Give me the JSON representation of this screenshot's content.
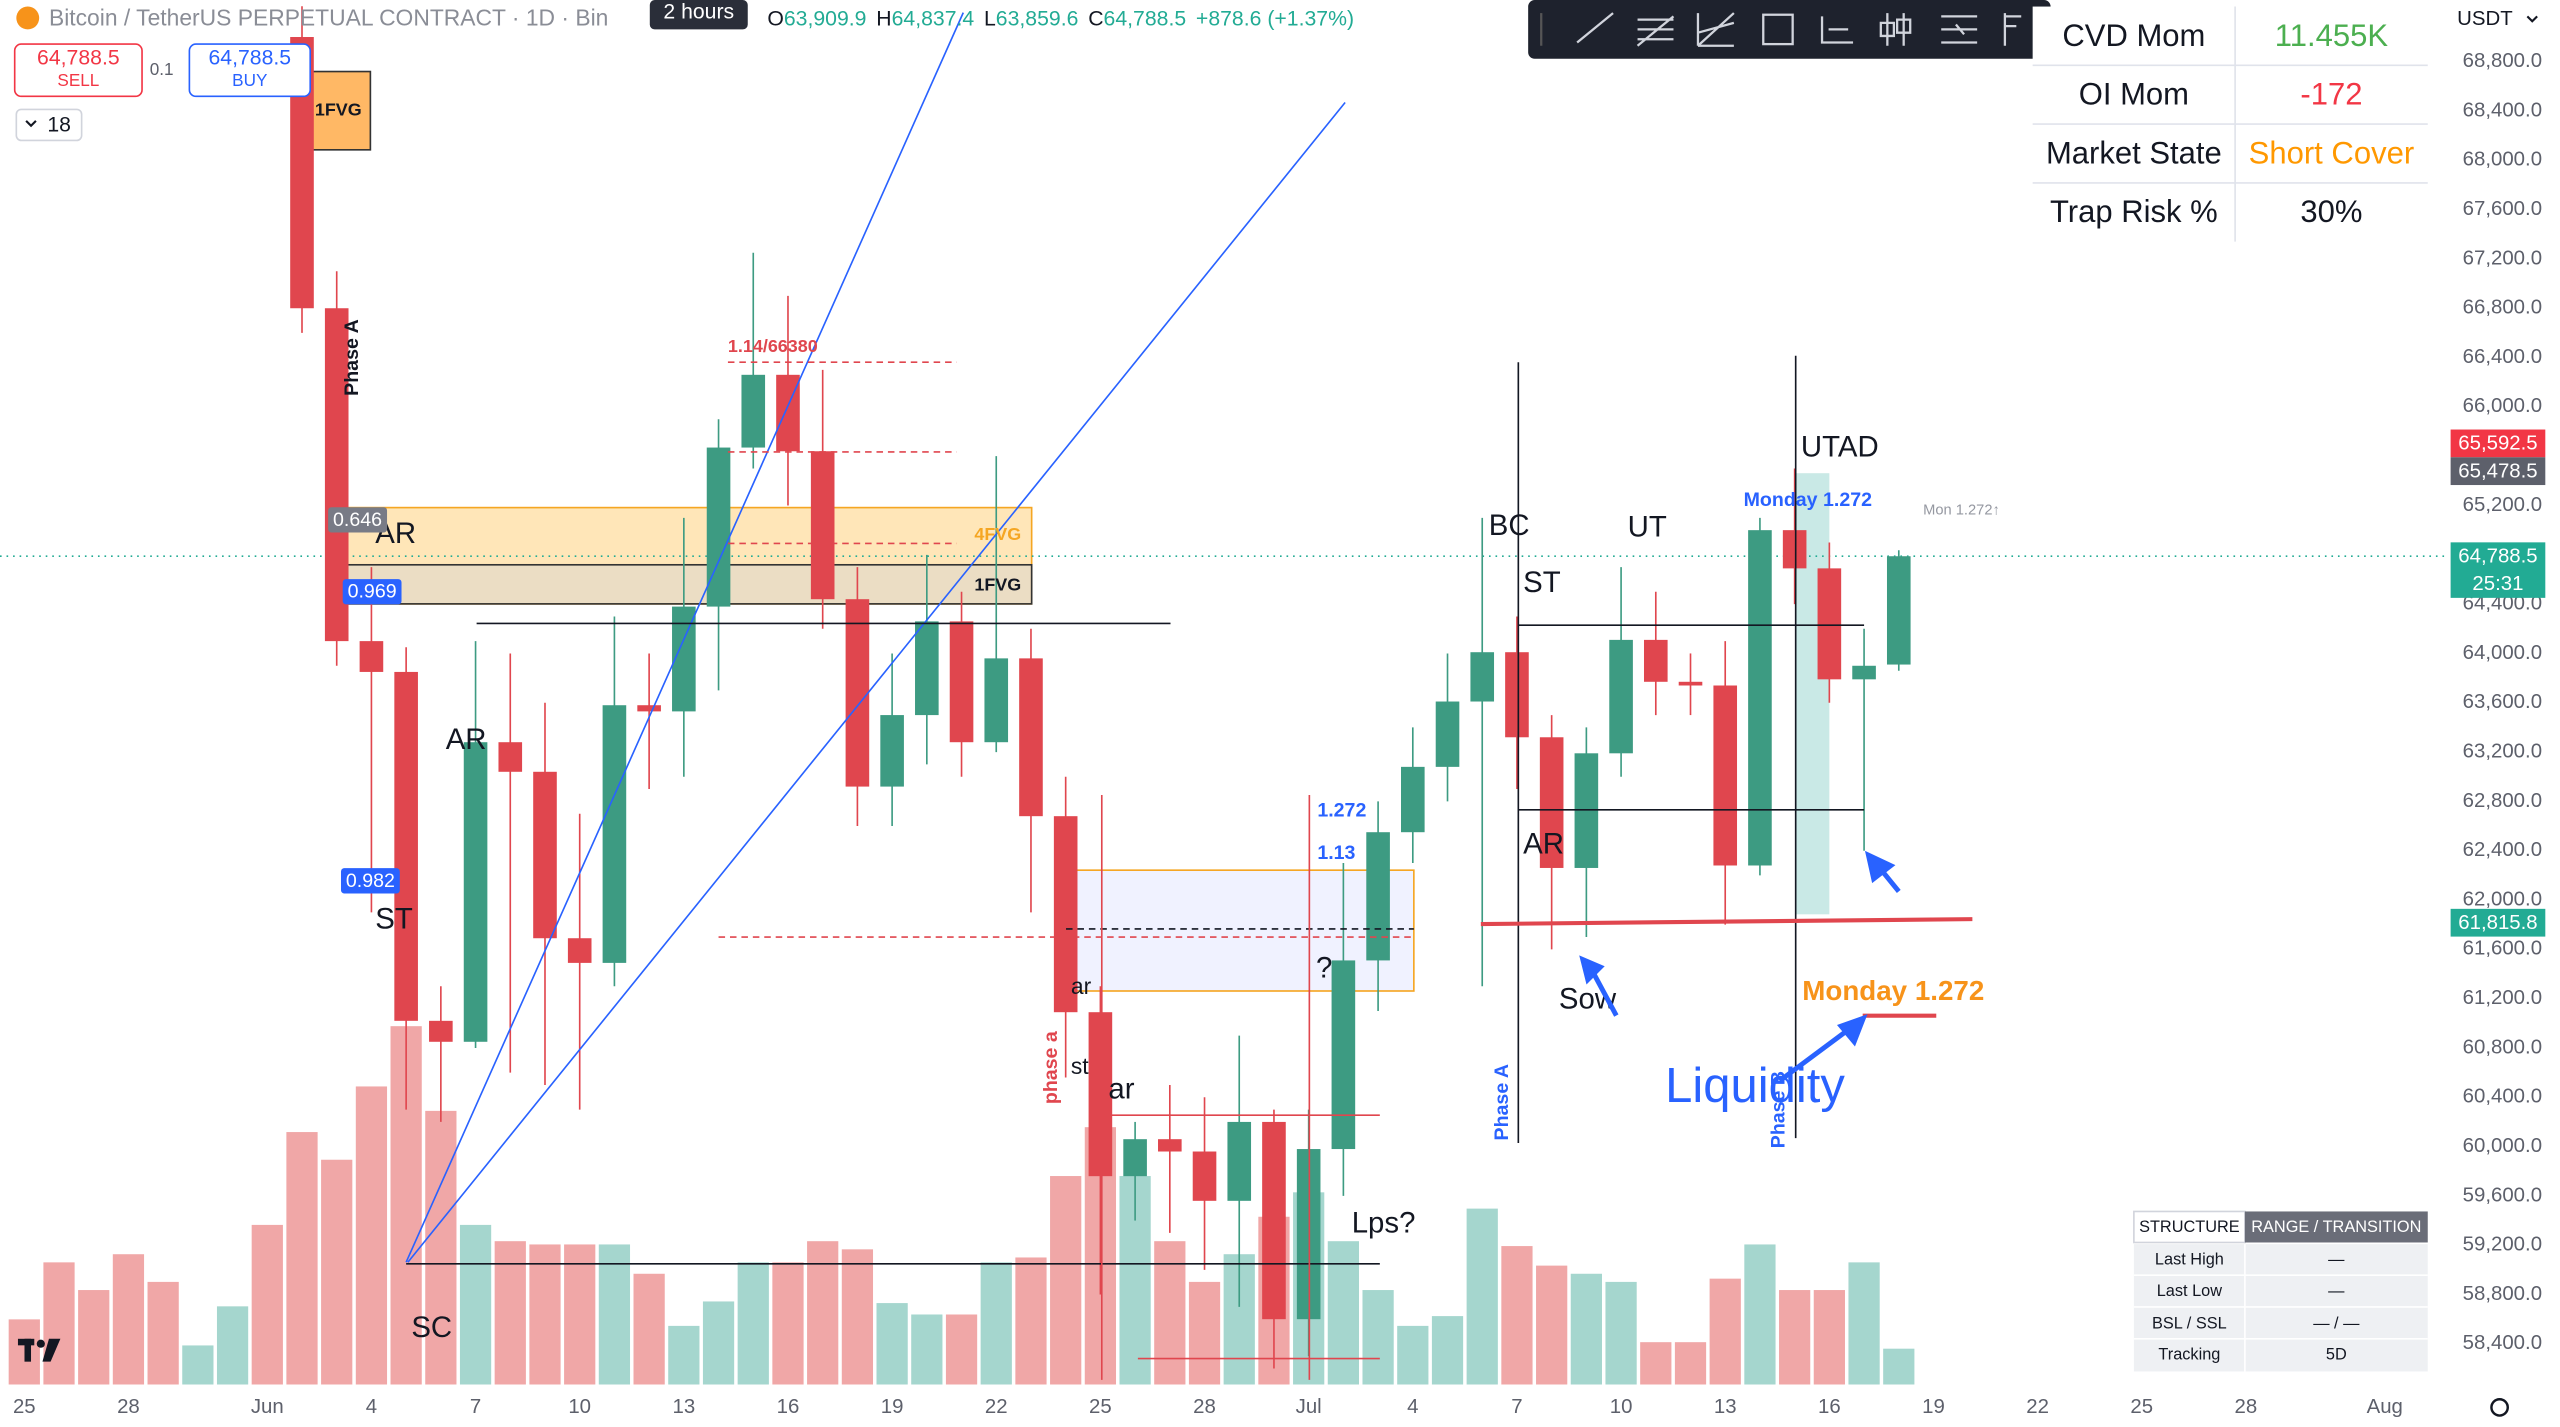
{
  "header": {
    "title": "Bitcoin / TetherUS PERPETUAL CONTRACT · 1D · Bin",
    "tooltip": "2 hours",
    "ohlc": [
      [
        "O",
        "63,909.9"
      ],
      [
        "H",
        "64,837.4"
      ],
      [
        "L",
        "63,859.6"
      ],
      [
        "C",
        "64,788.5"
      ]
    ],
    "change": "+878.6 (+1.37%)"
  },
  "trade": {
    "sell_price": "64,788.5",
    "sell": "SELL",
    "spread": "0.1",
    "buy_price": "64,788.5",
    "buy": "BUY",
    "interval": "18"
  },
  "currency": "USDT",
  "stats_table": {
    "rows": [
      [
        "CVD Mom",
        "11.455K"
      ],
      [
        "OI Mom",
        "-172"
      ],
      [
        "Market State",
        "Short Cover"
      ],
      [
        "Trap Risk %",
        "30%"
      ]
    ]
  },
  "structure_table": {
    "header": [
      "STRUCTURE",
      "RANGE / TRANSITION"
    ],
    "rows": [
      [
        "Last High",
        "—"
      ],
      [
        "Last Low",
        "—"
      ],
      [
        "BSL / SSL",
        "— / —"
      ],
      [
        "Tracking",
        "5D"
      ]
    ]
  },
  "chart_data": {
    "type": "candlestick",
    "grid": false,
    "up_color": "#3d9b82",
    "down_color": "#e0464e",
    "x": [
      8,
      9,
      10,
      11,
      12,
      13,
      14,
      15,
      16,
      17,
      18,
      19,
      20,
      21,
      22,
      23,
      24,
      25,
      26,
      27,
      28,
      29,
      30,
      31,
      32,
      33,
      34,
      35,
      36,
      37,
      38,
      39,
      40,
      41,
      42,
      43,
      44,
      45,
      46,
      47,
      48,
      49,
      50,
      51,
      52,
      53,
      54
    ],
    "open": [
      69000,
      66800,
      64100,
      63850,
      61020,
      60850,
      63280,
      63040,
      61690,
      61490,
      63580,
      63530,
      64380,
      65670,
      66260,
      65640,
      64440,
      62920,
      63500,
      64260,
      63280,
      63960,
      62680,
      61090,
      59760,
      60060,
      59960,
      59560,
      60200,
      58600,
      59980,
      61510,
      62550,
      63080,
      63610,
      64010,
      63320,
      62260,
      63190,
      64110,
      63770,
      63740,
      62280,
      65000,
      64690,
      63790,
      63909.9
    ],
    "high": [
      69250,
      67100,
      64700,
      64050,
      61300,
      64100,
      64000,
      63600,
      62700,
      64300,
      64000,
      65100,
      65900,
      67250,
      66900,
      66300,
      64700,
      64000,
      64800,
      64500,
      65600,
      64200,
      63000,
      61300,
      60200,
      60500,
      60400,
      60900,
      60300,
      60300,
      62300,
      62800,
      63400,
      64000,
      65100,
      64300,
      63500,
      63400,
      64700,
      64500,
      64000,
      64100,
      65100,
      65500,
      64900,
      64200,
      64837.4
    ],
    "low": [
      66600,
      63900,
      61900,
      60300,
      60200,
      60800,
      60600,
      60500,
      60300,
      61300,
      62900,
      63000,
      63700,
      65500,
      65200,
      64200,
      62600,
      62600,
      63100,
      63000,
      63200,
      61900,
      60560,
      58800,
      59400,
      59300,
      59000,
      58700,
      58200,
      58300,
      59600,
      61100,
      62300,
      62800,
      61300,
      62900,
      61600,
      61700,
      63000,
      63500,
      63500,
      61800,
      62200,
      64400,
      63600,
      62400,
      63859.6
    ],
    "close": [
      66800,
      64100,
      63850,
      61020,
      60850,
      63280,
      63040,
      61690,
      61490,
      63580,
      63530,
      64380,
      65670,
      66260,
      65640,
      64440,
      62920,
      63500,
      64260,
      63280,
      63960,
      62680,
      61090,
      59760,
      60060,
      59960,
      59560,
      60200,
      58600,
      59980,
      61510,
      62550,
      63080,
      63610,
      64010,
      63320,
      62260,
      63190,
      64110,
      63770,
      63740,
      62280,
      65000,
      64690,
      63790,
      63900,
      64788.5
    ],
    "xlim": [
      -0.7,
      69.85
    ],
    "xticks": [
      {
        "value": 0,
        "label": "25"
      },
      {
        "value": 3,
        "label": "28"
      },
      {
        "value": 7,
        "label": "Jun"
      },
      {
        "value": 10,
        "label": "4"
      },
      {
        "value": 13,
        "label": "7"
      },
      {
        "value": 16,
        "label": "10"
      },
      {
        "value": 19,
        "label": "13"
      },
      {
        "value": 22,
        "label": "16"
      },
      {
        "value": 25,
        "label": "19"
      },
      {
        "value": 28,
        "label": "22"
      },
      {
        "value": 31,
        "label": "25"
      },
      {
        "value": 34,
        "label": "28"
      },
      {
        "value": 37,
        "label": "Jul"
      },
      {
        "value": 40,
        "label": "4"
      },
      {
        "value": 43,
        "label": "7"
      },
      {
        "value": 46,
        "label": "10"
      },
      {
        "value": 49,
        "label": "13"
      },
      {
        "value": 52,
        "label": "16"
      },
      {
        "value": 55,
        "label": "19"
      },
      {
        "value": 58,
        "label": "22"
      },
      {
        "value": 61,
        "label": "25"
      },
      {
        "value": 64,
        "label": "28"
      },
      {
        "value": 68,
        "label": "Aug"
      }
    ],
    "ylim": [
      58070,
      69300
    ],
    "yticks": [
      {
        "value": 68800,
        "label": "68,800.0"
      },
      {
        "value": 68400,
        "label": "68,400.0"
      },
      {
        "value": 68000,
        "label": "68,000.0"
      },
      {
        "value": 67600,
        "label": "67,600.0"
      },
      {
        "value": 67200,
        "label": "67,200.0"
      },
      {
        "value": 66800,
        "label": "66,800.0"
      },
      {
        "value": 66400,
        "label": "66,400.0"
      },
      {
        "value": 66000,
        "label": "66,000.0"
      },
      {
        "value": 65200,
        "label": "65,200.0"
      },
      {
        "value": 64400,
        "label": "64,400.0"
      },
      {
        "value": 64000,
        "label": "64,000.0"
      },
      {
        "value": 63600,
        "label": "63,600.0"
      },
      {
        "value": 63200,
        "label": "63,200.0"
      },
      {
        "value": 62800,
        "label": "62,800.0"
      },
      {
        "value": 62400,
        "label": "62,400.0"
      },
      {
        "value": 62000,
        "label": "62,000.0"
      },
      {
        "value": 61600,
        "label": "61,600.0"
      },
      {
        "value": 61200,
        "label": "61,200.0"
      },
      {
        "value": 60800,
        "label": "60,800.0"
      },
      {
        "value": 60400,
        "label": "60,400.0"
      },
      {
        "value": 60000,
        "label": "60,000.0"
      },
      {
        "value": 59600,
        "label": "59,600.0"
      },
      {
        "value": 59200,
        "label": "59,200.0"
      },
      {
        "value": 58800,
        "label": "58,800.0"
      },
      {
        "value": 58400,
        "label": "58,400.0"
      }
    ],
    "price_tags": [
      {
        "value": 65592.5,
        "label": "65,592.5",
        "color": "#f23645"
      },
      {
        "value": 65478.5,
        "label": "65,478.5",
        "color": "#5d606b"
      },
      {
        "value": 64788.5,
        "label": "64,788.5",
        "countdown": "25:31",
        "color": "#22ab94",
        "line": true
      },
      {
        "value": 61815.8,
        "label": "61,815.8",
        "color": "#22ab94"
      }
    ],
    "volume": {
      "ylim": [
        0,
        850
      ],
      "up_color": "#a5d6ce",
      "down_color": "#f0a7a7",
      "x": [
        0,
        1,
        2,
        3,
        4,
        5,
        6,
        7,
        8,
        9,
        10,
        11,
        12,
        13,
        14,
        15,
        16,
        17,
        18,
        19,
        20,
        21,
        22,
        23,
        24,
        25,
        26,
        27,
        28,
        29,
        30,
        31,
        32,
        33,
        34,
        35,
        36,
        37,
        38,
        39,
        40,
        41,
        42,
        43,
        44,
        45,
        46,
        47,
        48,
        49,
        50,
        51,
        52,
        53,
        54
      ],
      "values": [
        40,
        75,
        58,
        80,
        63,
        24,
        48,
        98,
        155,
        138,
        183,
        220,
        168,
        98,
        88,
        86,
        86,
        86,
        68,
        36,
        51,
        75,
        75,
        88,
        83,
        50,
        43,
        43,
        75,
        78,
        128,
        158,
        128,
        88,
        63,
        80,
        103,
        118,
        88,
        58,
        36,
        42,
        108,
        85,
        73,
        68,
        63,
        26,
        26,
        65,
        86,
        58,
        58,
        75,
        22
      ],
      "up": [
        false,
        false,
        false,
        false,
        false,
        true,
        true,
        false,
        false,
        false,
        false,
        false,
        false,
        true,
        false,
        false,
        false,
        true,
        false,
        true,
        true,
        true,
        false,
        false,
        false,
        true,
        true,
        false,
        true,
        false,
        false,
        false,
        true,
        false,
        false,
        true,
        false,
        true,
        true,
        true,
        true,
        true,
        true,
        false,
        false,
        true,
        true,
        false,
        false,
        false,
        true,
        false,
        false,
        true,
        true
      ]
    },
    "drawings": [
      {
        "kind": "box",
        "points": [
          [
            9.03,
            65183
          ],
          [
            29.02,
            64402
          ]
        ],
        "color": "#f5a623",
        "fill": "rgba(255,165,0,0.28)"
      },
      {
        "kind": "box",
        "points": [
          [
            9.03,
            64719
          ],
          [
            29.02,
            64402
          ]
        ],
        "color": "#333333",
        "fill": "rgba(210,210,210,0.45)"
      },
      {
        "kind": "box",
        "points": [
          [
            7.95,
            68720
          ],
          [
            9.97,
            68085
          ]
        ],
        "color": "#333333",
        "fill": "rgba(255,160,50,0.75)"
      },
      {
        "kind": "box",
        "points": [
          [
            30.01,
            62242
          ],
          [
            40.03,
            61262
          ]
        ],
        "color": "#f5a623",
        "fill": "rgba(180,190,255,0.2)"
      },
      {
        "kind": "box",
        "points": [
          [
            51.03,
            65462
          ],
          [
            52.0,
            61884
          ]
        ],
        "color": "none",
        "fill": "rgba(38,166,154,0.25)"
      },
      {
        "kind": "line",
        "points": [
          [
            11.0,
            59062
          ],
          [
            27.05,
            69198
          ]
        ],
        "color": "#2962ff"
      },
      {
        "kind": "line",
        "points": [
          [
            11.05,
            59062
          ],
          [
            38.05,
            68469
          ]
        ],
        "color": "#2962ff"
      },
      {
        "kind": "line",
        "points": [
          [
            13.03,
            64243
          ],
          [
            33.02,
            64243
          ]
        ],
        "color": "#131722"
      },
      {
        "kind": "line",
        "points": [
          [
            11.0,
            59049
          ],
          [
            39.05,
            59049
          ]
        ],
        "color": "#131722"
      },
      {
        "kind": "line",
        "points": [
          [
            43.04,
            64229
          ],
          [
            53.0,
            64229
          ]
        ],
        "color": "#131722"
      },
      {
        "kind": "line",
        "points": [
          [
            43.04,
            62732
          ],
          [
            53.0,
            62732
          ]
        ],
        "color": "#131722"
      },
      {
        "kind": "line",
        "points": [
          [
            43.04,
            66362
          ],
          [
            43.04,
            60029
          ]
        ],
        "color": "#131722"
      },
      {
        "kind": "line",
        "points": [
          [
            51.03,
            66415
          ],
          [
            51.03,
            60069
          ]
        ],
        "color": "#131722"
      },
      {
        "kind": "line",
        "points": [
          [
            41.96,
            61805
          ],
          [
            56.12,
            61845
          ]
        ],
        "color": "#e0464e",
        "bold": true
      },
      {
        "kind": "line",
        "points": [
          [
            52.96,
            61062
          ],
          [
            55.08,
            61062
          ]
        ],
        "color": "#e0464e",
        "bold": true
      },
      {
        "kind": "line",
        "points": [
          [
            20.0,
            61699
          ],
          [
            40.03,
            61699
          ]
        ],
        "color": "#e0464e",
        "dash": true
      },
      {
        "kind": "line",
        "points": [
          [
            30.01,
            61765
          ],
          [
            40.03,
            61765
          ]
        ],
        "color": "#131722",
        "dash": true
      },
      {
        "kind": "line",
        "points": [
          [
            20.27,
            66362
          ],
          [
            26.86,
            66362
          ]
        ],
        "color": "#e0464e",
        "dash": true
      },
      {
        "kind": "line",
        "points": [
          [
            20.27,
            65634
          ],
          [
            26.86,
            65634
          ]
        ],
        "color": "#e0464e",
        "dash": true
      },
      {
        "kind": "line",
        "points": [
          [
            20.27,
            64892
          ],
          [
            26.86,
            64892
          ]
        ],
        "color": "#e0464e",
        "dash": true
      },
      {
        "kind": "line",
        "points": [
          [
            31.04,
            62852
          ],
          [
            31.04,
            58108
          ]
        ],
        "color": "#e0464e"
      },
      {
        "kind": "line",
        "points": [
          [
            37.02,
            62852
          ],
          [
            37.02,
            58108
          ]
        ],
        "color": "#e0464e"
      },
      {
        "kind": "line",
        "points": [
          [
            31.28,
            60255
          ],
          [
            39.05,
            60255
          ]
        ],
        "color": "#e0464e"
      },
      {
        "kind": "line",
        "points": [
          [
            32.08,
            58281
          ],
          [
            39.05,
            58281
          ]
        ],
        "color": "#e0464e"
      }
    ],
    "annotations": {
      "wyckoff": [
        {
          "text": "AR",
          "x": 12.14,
          "y": 63289
        },
        {
          "text": "ST",
          "x": 10.11,
          "y": 61831
        },
        {
          "text": "SC",
          "x": 11.15,
          "y": 58519
        },
        {
          "text": "AR",
          "x": 10.11,
          "y": 64958
        },
        {
          "text": "BC",
          "x": 42.19,
          "y": 65024
        },
        {
          "text": "UT",
          "x": 46.19,
          "y": 65011
        },
        {
          "text": "ST",
          "x": 43.18,
          "y": 64560
        },
        {
          "text": "AR",
          "x": 43.18,
          "y": 62441
        },
        {
          "text": "UTAD",
          "x": 51.18,
          "y": 65660
        },
        {
          "text": "Sow",
          "x": 44.21,
          "y": 61182
        },
        {
          "text": "Lps?",
          "x": 38.24,
          "y": 59367
        },
        {
          "text": "?",
          "x": 37.21,
          "y": 61434
        },
        {
          "text": "ar",
          "x": 31.23,
          "y": 60453
        }
      ],
      "small": [
        {
          "text": "ar",
          "x": 30.15,
          "y": 61288
        },
        {
          "text": "st",
          "x": 30.15,
          "y": 60639
        }
      ],
      "liquidity": [
        {
          "text": "Liquidity",
          "x": 47.27,
          "y": 60467
        }
      ],
      "monday": [
        {
          "text": "Monday 1.272",
          "x": 51.22,
          "y": 61248
        }
      ],
      "fib_blue": [
        {
          "text": "Monday 1.272",
          "x": 49.53,
          "y": 65236
        },
        {
          "text": "1.272",
          "x": 37.25,
          "y": 62719
        },
        {
          "text": "1.13",
          "x": 37.25,
          "y": 62375
        }
      ],
      "fib_red": [
        {
          "text": "1.14/66380",
          "x": 20.27,
          "y": 66482
        }
      ],
      "fvg": [
        {
          "text": "4FVG",
          "x": 27.37,
          "y": 64958,
          "color": "#f5a623"
        },
        {
          "text": "1FVG",
          "x": 27.37,
          "y": 64547,
          "color": "#131722"
        },
        {
          "text": "1FVG",
          "x": 8.37,
          "y": 68403,
          "color": "#131722"
        }
      ],
      "phase": [
        {
          "text": "Phase A",
          "x": 9.46,
          "y": 66400,
          "color": "#131722"
        },
        {
          "text": "phase a",
          "x": 29.6,
          "y": 60640,
          "color": "#e0464e"
        },
        {
          "text": "Phase A",
          "x": 42.6,
          "y": 60360,
          "color": "#2962ff"
        },
        {
          "text": "Phase B",
          "x": 50.56,
          "y": 60300,
          "color": "#2962ff"
        }
      ],
      "faint": [
        {
          "text": "Mon 1.272↑",
          "x": 54.7,
          "y": 65157
        }
      ],
      "fib_tag": [
        {
          "text": "0.646",
          "x": 9.6,
          "y": 65077,
          "color": "#787b86"
        },
        {
          "text": "0.969",
          "x": 10.02,
          "y": 64494,
          "color": "#2962ff"
        },
        {
          "text": "0.982",
          "x": 9.97,
          "y": 62149,
          "color": "#2962ff"
        }
      ]
    }
  }
}
